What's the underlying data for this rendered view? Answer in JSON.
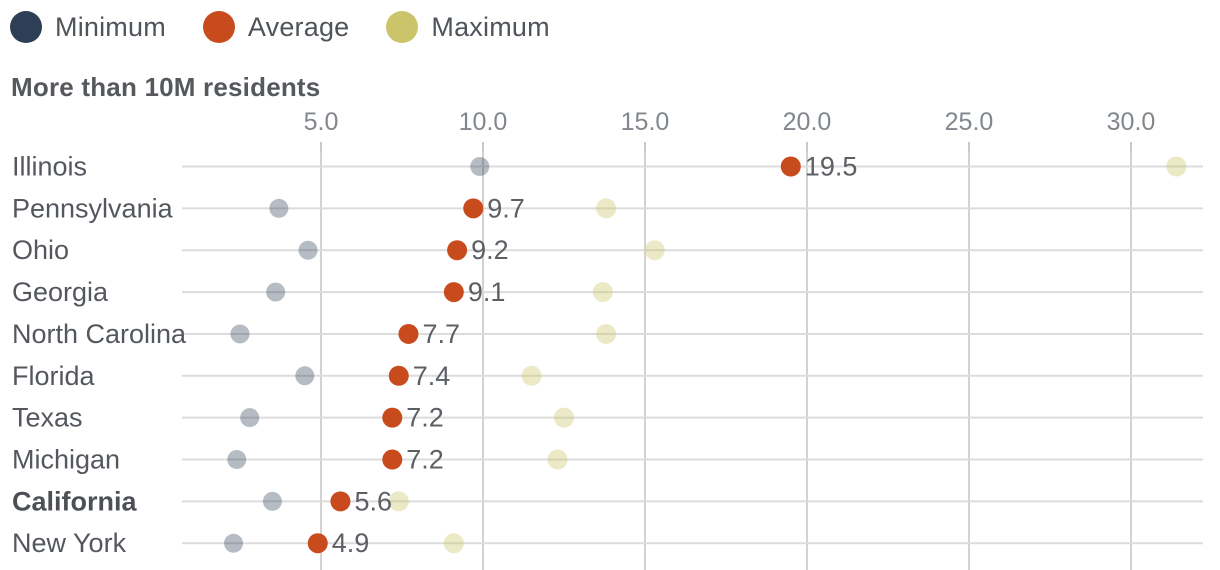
{
  "legend": {
    "items": [
      {
        "label": "Minimum",
        "color": "#2d3e55"
      },
      {
        "label": "Average",
        "color": "#c84b1d"
      },
      {
        "label": "Maximum",
        "color": "#cbc46a"
      }
    ]
  },
  "section_title": "More than 10M residents",
  "colors": {
    "minimum": "#2d3e55",
    "average": "#c84b1d",
    "maximum": "#cbc46a",
    "grid_vertical": "#d2d2d2",
    "grid_horizontal": "#dcdcdc",
    "tick_mark": "#c9c9c9"
  },
  "chart_data": {
    "type": "scatter",
    "subtype": "dot-range-plot",
    "title": "More than 10M residents",
    "xlabel": "",
    "ylabel": "",
    "xlim": [
      0.7,
      32.2
    ],
    "grid": "on",
    "legend_position": "top-left",
    "x_ticks": [
      5,
      10,
      15,
      20,
      25,
      30
    ],
    "x_tick_labels": [
      "5.0",
      "10.0",
      "15.0",
      "20.0",
      "25.0",
      "30.0"
    ],
    "categories": [
      "Illinois",
      "Pennsylvania",
      "Ohio",
      "Georgia",
      "North Carolina",
      "Florida",
      "Texas",
      "Michigan",
      "California",
      "New York"
    ],
    "bold_category": "California",
    "series": [
      {
        "name": "Minimum",
        "values": [
          9.9,
          3.7,
          4.6,
          3.6,
          2.5,
          4.5,
          2.8,
          2.4,
          3.5,
          2.3
        ]
      },
      {
        "name": "Average",
        "values": [
          19.5,
          9.7,
          9.2,
          9.1,
          7.7,
          7.4,
          7.2,
          7.2,
          5.6,
          4.9
        ]
      },
      {
        "name": "Maximum",
        "values": [
          31.4,
          13.8,
          15.3,
          13.7,
          13.8,
          11.5,
          12.5,
          12.3,
          7.4,
          9.1
        ]
      }
    ],
    "average_point_labels": [
      "19.5",
      "9.7",
      "9.2",
      "9.1",
      "7.7",
      "7.4",
      "7.2",
      "7.2",
      "5.6",
      "4.9"
    ]
  }
}
